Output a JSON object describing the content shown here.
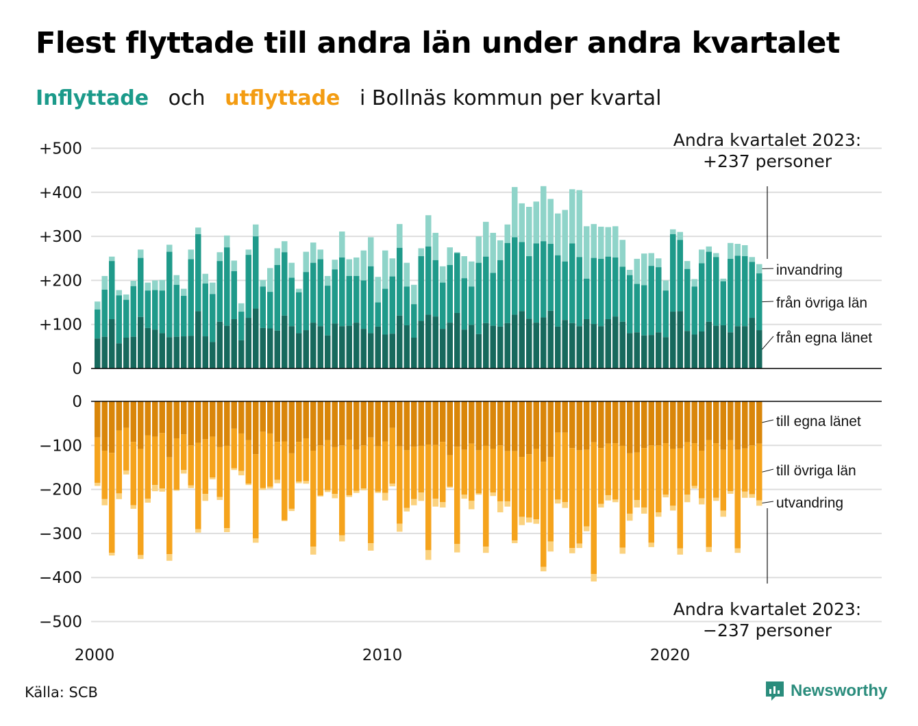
{
  "title": "Flest flyttade till andra län under andra kvartalet",
  "subtitle": {
    "part1": "Inflyttade",
    "part2": "och",
    "part3": "utflyttade",
    "part4": "i Bollnäs  kommun  per  kvartal"
  },
  "source": "Källa: SCB",
  "brand": "Newsworthy",
  "colors": {
    "in_own": "#17695d",
    "in_other": "#1f9a8a",
    "in_immigration": "#8fd4c9",
    "out_own": "#d9860a",
    "out_other": "#f5a31c",
    "out_emigration": "#fbd27f",
    "grid": "#dddddd",
    "axis": "#000000"
  },
  "chart_data": {
    "type": "bar",
    "stacked": true,
    "x_start": "2000 Q1",
    "x_ticks": [
      {
        "label": "2000",
        "year": 2000
      },
      {
        "label": "2010",
        "year": 2010
      },
      {
        "label": "2020",
        "year": 2020
      }
    ],
    "ylim_in": [
      0,
      500
    ],
    "ylim_out": [
      -500,
      0
    ],
    "y_ticks_in": [
      "+500",
      "+400",
      "+300",
      "+200",
      "+100",
      "0"
    ],
    "y_ticks_out": [
      "0",
      "−100",
      "−200",
      "−300",
      "−400",
      "−500"
    ],
    "y_tick_values_in": [
      500,
      400,
      300,
      200,
      100,
      0
    ],
    "y_tick_values_out": [
      0,
      -100,
      -200,
      -300,
      -400,
      -500
    ],
    "grid": true,
    "annotation_top": {
      "line1": "Andra kvartalet 2023:",
      "line2": "+237 personer"
    },
    "annotation_bottom": {
      "line1": "Andra kvartalet 2023:",
      "line2": "−237 personer"
    },
    "series_labels_in": [
      "invandring",
      "från övriga län",
      "från egna länet"
    ],
    "series_labels_out": [
      "till egna länet",
      "till övriga län",
      "utvandring"
    ],
    "inflow": [
      [
        68,
        134,
        152
      ],
      [
        72,
        179,
        210
      ],
      [
        112,
        244,
        254
      ],
      [
        57,
        166,
        178
      ],
      [
        70,
        156,
        168
      ],
      [
        72,
        187,
        199
      ],
      [
        117,
        251,
        270
      ],
      [
        92,
        177,
        195
      ],
      [
        88,
        178,
        200
      ],
      [
        80,
        177,
        201
      ],
      [
        71,
        265,
        281
      ],
      [
        72,
        190,
        212
      ],
      [
        73,
        165,
        181
      ],
      [
        74,
        248,
        270
      ],
      [
        130,
        305,
        320
      ],
      [
        73,
        193,
        215
      ],
      [
        60,
        169,
        195
      ],
      [
        106,
        244,
        264
      ],
      [
        97,
        275,
        302
      ],
      [
        112,
        221,
        245
      ],
      [
        64,
        129,
        148
      ],
      [
        115,
        258,
        270
      ],
      [
        136,
        300,
        327
      ],
      [
        92,
        186,
        201
      ],
      [
        91,
        174,
        228
      ],
      [
        86,
        235,
        273
      ],
      [
        120,
        264,
        289
      ],
      [
        96,
        206,
        240
      ],
      [
        80,
        173,
        181
      ],
      [
        87,
        219,
        265
      ],
      [
        104,
        240,
        286
      ],
      [
        96,
        248,
        270
      ],
      [
        75,
        188,
        210
      ],
      [
        102,
        225,
        247
      ],
      [
        96,
        252,
        311
      ],
      [
        97,
        210,
        248
      ],
      [
        104,
        210,
        252
      ],
      [
        90,
        200,
        268
      ],
      [
        80,
        232,
        298
      ],
      [
        95,
        150,
        208
      ],
      [
        77,
        181,
        268
      ],
      [
        79,
        209,
        250
      ],
      [
        120,
        274,
        328
      ],
      [
        98,
        186,
        240
      ],
      [
        70,
        146,
        190
      ],
      [
        108,
        255,
        273
      ],
      [
        122,
        277,
        348
      ],
      [
        118,
        246,
        308
      ],
      [
        90,
        195,
        232
      ],
      [
        104,
        235,
        275
      ],
      [
        126,
        262,
        264
      ],
      [
        88,
        205,
        255
      ],
      [
        99,
        186,
        243
      ],
      [
        78,
        240,
        300
      ],
      [
        103,
        254,
        333
      ],
      [
        97,
        217,
        308
      ],
      [
        95,
        246,
        291
      ],
      [
        103,
        285,
        327
      ],
      [
        122,
        298,
        412
      ],
      [
        130,
        287,
        375
      ],
      [
        113,
        255,
        367
      ],
      [
        104,
        284,
        379
      ],
      [
        116,
        289,
        414
      ],
      [
        131,
        283,
        385
      ],
      [
        95,
        257,
        352
      ],
      [
        110,
        243,
        360
      ],
      [
        103,
        284,
        407
      ],
      [
        96,
        253,
        405
      ],
      [
        112,
        204,
        323
      ],
      [
        101,
        251,
        328
      ],
      [
        96,
        249,
        322
      ],
      [
        112,
        254,
        321
      ],
      [
        118,
        252,
        323
      ],
      [
        106,
        231,
        292
      ],
      [
        80,
        212,
        224
      ],
      [
        82,
        192,
        249
      ],
      [
        75,
        189,
        261
      ],
      [
        76,
        233,
        262
      ],
      [
        82,
        230,
        250
      ],
      [
        71,
        177,
        200
      ],
      [
        129,
        305,
        316
      ],
      [
        130,
        292,
        310
      ],
      [
        85,
        226,
        244
      ],
      [
        77,
        186,
        203
      ],
      [
        84,
        239,
        270
      ],
      [
        106,
        265,
        277
      ],
      [
        97,
        253,
        262
      ],
      [
        98,
        198,
        204
      ],
      [
        82,
        249,
        285
      ],
      [
        96,
        256,
        283
      ],
      [
        96,
        255,
        280
      ],
      [
        115,
        242,
        253
      ],
      [
        87,
        216,
        237
      ]
    ],
    "outflow": [
      [
        -82,
        -185,
        -192
      ],
      [
        -112,
        -222,
        -236
      ],
      [
        -117,
        -344,
        -350
      ],
      [
        -66,
        -209,
        -222
      ],
      [
        -60,
        -157,
        -166
      ],
      [
        -92,
        -236,
        -244
      ],
      [
        -108,
        -349,
        -358
      ],
      [
        -77,
        -221,
        -230
      ],
      [
        -80,
        -190,
        -204
      ],
      [
        -72,
        -198,
        -205
      ],
      [
        -127,
        -347,
        -362
      ],
      [
        -84,
        -201,
        -203
      ],
      [
        -75,
        -156,
        -164
      ],
      [
        -100,
        -191,
        -197
      ],
      [
        -94,
        -290,
        -298
      ],
      [
        -86,
        -210,
        -226
      ],
      [
        -80,
        -173,
        -177
      ],
      [
        -104,
        -217,
        -224
      ],
      [
        -101,
        -288,
        -297
      ],
      [
        -62,
        -152,
        -156
      ],
      [
        -73,
        -158,
        -168
      ],
      [
        -88,
        -187,
        -190
      ],
      [
        -120,
        -311,
        -321
      ],
      [
        -69,
        -197,
        -201
      ],
      [
        -73,
        -194,
        -198
      ],
      [
        -92,
        -178,
        -186
      ],
      [
        -91,
        -270,
        -272
      ],
      [
        -118,
        -244,
        -249
      ],
      [
        -92,
        -182,
        -186
      ],
      [
        -84,
        -181,
        -187
      ],
      [
        -112,
        -330,
        -348
      ],
      [
        -100,
        -214,
        -216
      ],
      [
        -88,
        -202,
        -206
      ],
      [
        -104,
        -210,
        -220
      ],
      [
        -100,
        -304,
        -318
      ],
      [
        -87,
        -213,
        -217
      ],
      [
        -110,
        -203,
        -208
      ],
      [
        -100,
        -198,
        -202
      ],
      [
        -82,
        -322,
        -339
      ],
      [
        -102,
        -205,
        -208
      ],
      [
        -91,
        -208,
        -225
      ],
      [
        -60,
        -187,
        -193
      ],
      [
        -102,
        -278,
        -296
      ],
      [
        -111,
        -242,
        -250
      ],
      [
        -103,
        -222,
        -236
      ],
      [
        -101,
        -207,
        -226
      ],
      [
        -98,
        -338,
        -360
      ],
      [
        -99,
        -221,
        -239
      ],
      [
        -92,
        -229,
        -241
      ],
      [
        -122,
        -194,
        -196
      ],
      [
        -103,
        -324,
        -343
      ],
      [
        -110,
        -212,
        -221
      ],
      [
        -96,
        -226,
        -245
      ],
      [
        -111,
        -209,
        -212
      ],
      [
        -101,
        -330,
        -344
      ],
      [
        -108,
        -207,
        -215
      ],
      [
        -100,
        -227,
        -252
      ],
      [
        -113,
        -227,
        -239
      ],
      [
        -113,
        -316,
        -322
      ],
      [
        -126,
        -262,
        -281
      ],
      [
        -120,
        -264,
        -275
      ],
      [
        -108,
        -268,
        -278
      ],
      [
        -137,
        -376,
        -386
      ],
      [
        -126,
        -318,
        -341
      ],
      [
        -71,
        -223,
        -232
      ],
      [
        -71,
        -229,
        -242
      ],
      [
        -106,
        -333,
        -345
      ],
      [
        -111,
        -323,
        -333
      ],
      [
        -110,
        -284,
        -295
      ],
      [
        -93,
        -392,
        -409
      ],
      [
        -106,
        -233,
        -241
      ],
      [
        -96,
        -213,
        -225
      ],
      [
        -95,
        -223,
        -229
      ],
      [
        -101,
        -332,
        -346
      ],
      [
        -118,
        -255,
        -271
      ],
      [
        -116,
        -224,
        -241
      ],
      [
        -106,
        -241,
        -255
      ],
      [
        -100,
        -321,
        -331
      ],
      [
        -100,
        -252,
        -262
      ],
      [
        -95,
        -212,
        -218
      ],
      [
        -108,
        -237,
        -248
      ],
      [
        -107,
        -334,
        -348
      ],
      [
        -93,
        -212,
        -229
      ],
      [
        -95,
        -192,
        -198
      ],
      [
        -112,
        -220,
        -234
      ],
      [
        -88,
        -331,
        -342
      ],
      [
        -95,
        -219,
        -226
      ],
      [
        -110,
        -248,
        -262
      ],
      [
        -88,
        -204,
        -210
      ],
      [
        -110,
        -334,
        -344
      ],
      [
        -107,
        -205,
        -219
      ],
      [
        -100,
        -211,
        -219
      ],
      [
        -96,
        -225,
        -237
      ]
    ]
  }
}
